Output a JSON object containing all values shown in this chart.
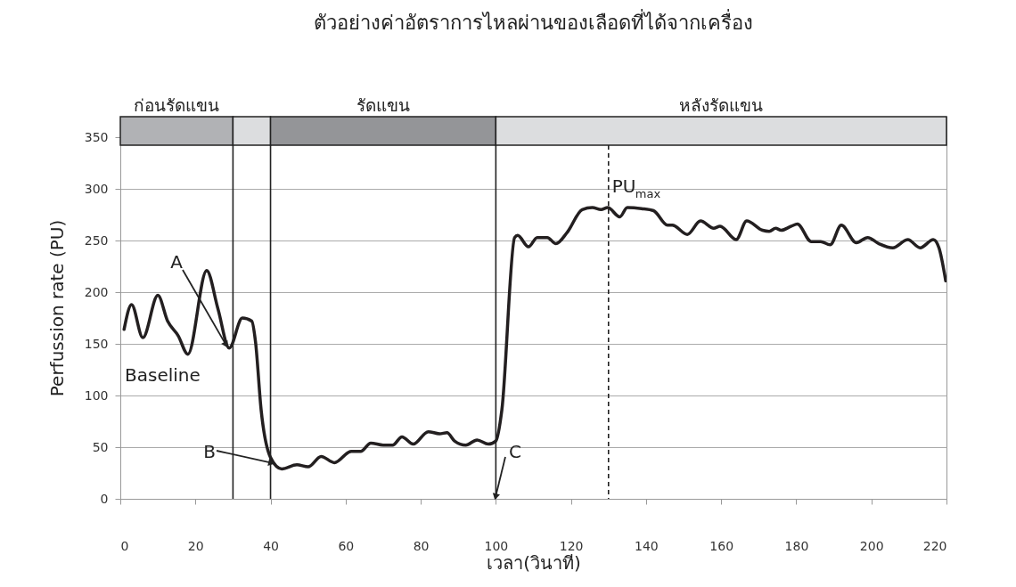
{
  "chart_data": {
    "type": "line",
    "title": "ตัวอย่างค่าอัตราการไหลผ่านของเลือดที่ได้จากเครื่อง",
    "xlabel": "เวลา(วินาที)",
    "ylabel": "Perfussion rate (PU)",
    "xlim": [
      0,
      220
    ],
    "xticks": [
      0,
      20,
      40,
      60,
      80,
      100,
      120,
      140,
      160,
      180,
      200,
      220
    ],
    "ylim": [
      0,
      370
    ],
    "yticks": [
      0,
      50,
      100,
      150,
      200,
      250,
      300,
      350
    ],
    "grid": "y",
    "marker": "none",
    "line_style": "solid",
    "series": [
      {
        "color": "#231f20",
        "x": [
          1,
          3,
          6,
          10,
          12.6,
          15.4,
          18,
          23,
          26,
          29,
          32.5,
          35,
          36,
          37.5,
          40,
          43,
          47,
          50,
          53.5,
          57,
          61.5,
          64,
          66.7,
          70,
          72.5,
          75,
          78,
          82,
          85,
          87,
          89,
          92,
          95,
          98,
          100,
          101.6,
          105,
          105.8,
          108.7,
          111,
          113.7,
          116,
          119,
          123,
          125.7,
          128,
          129.8,
          133,
          135,
          138.8,
          142,
          145.7,
          147,
          151,
          154.5,
          158,
          159.7,
          164,
          166.8,
          171,
          172.8,
          174.5,
          176,
          178.7,
          180.3,
          184,
          186.5,
          189,
          192,
          196,
          199,
          202,
          205.7,
          209.7,
          213,
          216.5,
          218,
          219.8
        ],
        "values": [
          164,
          188,
          156,
          197,
          172,
          158,
          140,
          221,
          184,
          146,
          175,
          172,
          152,
          86,
          40,
          29,
          33,
          31,
          41,
          35,
          46,
          46,
          54,
          52,
          52,
          60,
          53,
          65,
          63,
          64,
          56,
          52,
          57,
          53,
          56,
          86,
          253,
          255,
          244,
          253,
          253,
          247,
          258,
          280,
          282,
          280,
          282,
          273,
          282,
          281,
          279,
          265,
          265,
          256,
          269,
          262,
          264,
          251,
          269,
          260,
          259,
          262,
          260,
          264,
          266,
          249,
          249,
          246,
          265,
          248,
          253,
          247,
          243,
          251,
          243,
          251,
          243,
          211
        ]
      }
    ],
    "bands": [
      {
        "axis": "x",
        "from": 0,
        "to": 30,
        "label": "ก่อนรัดแขน",
        "color": "#b1b2b5"
      },
      {
        "axis": "x",
        "from": 30,
        "to": 40,
        "label": null,
        "color": "#dcdddf"
      },
      {
        "axis": "x",
        "from": 40,
        "to": 100,
        "label": "รัดแขน",
        "color": "#949598"
      },
      {
        "axis": "x",
        "from": 100,
        "to": 220,
        "label": "หลังรัดแขน",
        "color": "#dcdddf"
      }
    ],
    "ref_lines": [
      {
        "axis": "x",
        "value": 30,
        "label": null,
        "line_style": "solid"
      },
      {
        "axis": "x",
        "value": 40,
        "label": null,
        "line_style": "solid"
      },
      {
        "axis": "x",
        "value": 100,
        "label": null,
        "line_style": "solid"
      },
      {
        "axis": "x",
        "value": 130,
        "label": null,
        "line_style": "dashed"
      }
    ],
    "annotations": [
      {
        "text": "A",
        "x": 28,
        "y": 150
      },
      {
        "text": "B",
        "x": 40,
        "y": 35
      },
      {
        "text": "C",
        "x": 100,
        "y": 3
      },
      {
        "text": "PU$_{max}$",
        "x": 130,
        "y": 290
      },
      "Baseline"
    ]
  }
}
